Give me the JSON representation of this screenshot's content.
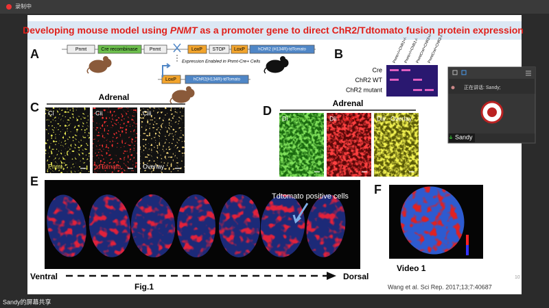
{
  "recording_indicator": "录制中",
  "slide": {
    "title": {
      "before": "Developing mouse model using ",
      "italic": "PNMT",
      "after": " as a promoter gene to direct ChR2/Tdtomato fusion protein expression"
    },
    "panel_a": {
      "label": "A",
      "promoter1": "Pnmt",
      "cre": "Cre recombinase",
      "promoter2": "Pnmt",
      "loxp1": "LoxP",
      "stop": "STOP",
      "loxp2": "LoxP",
      "gene": "hChR2 (H134R)-tdTomato",
      "expression": "Expression Enabled in Pnmt-Cre+ Cells",
      "loxp3": "LoxP",
      "gene2": "hChR2(H134R)-tdTomato"
    },
    "panel_b": {
      "label": "B",
      "lanes": [
        "Pnmt+/+ChR2+/-",
        "Pnmt+/+ChR2-/-",
        "PnmtCre/+ChR2+/-",
        "PnmtCre/+ChR2-/-"
      ],
      "rows": [
        "Cre",
        "ChR2 WT",
        "ChR2 mutant"
      ]
    },
    "panel_c": {
      "label": "C",
      "heading": "Adrenal",
      "images": [
        {
          "tag": "Ci",
          "caption": "Pnmt"
        },
        {
          "tag": "Cii",
          "caption": "tdTomato"
        },
        {
          "tag": "Ciii",
          "caption": "Overlay"
        }
      ]
    },
    "panel_d": {
      "label": "D",
      "heading": "Adrenal",
      "images": [
        {
          "tag": "Di",
          "caption": "Pnmt"
        },
        {
          "tag": "Dii",
          "caption": "ChR2"
        },
        {
          "tag": "Diii",
          "caption": "Overlay"
        }
      ]
    },
    "panel_e": {
      "label": "E",
      "annotation": "Tdtomato positive cells",
      "ventral": "Ventral",
      "dorsal": "Dorsal",
      "figure": "Fig.1"
    },
    "panel_f": {
      "label": "F",
      "caption": "Video 1"
    },
    "citation": "Wang et al. Sci Rep. 2017;13;7:40687",
    "page_number": "10"
  },
  "video_panel": {
    "speaking": "正在讲话: Sandy;",
    "name": "Sandy"
  },
  "share_label": "Sandy的屏幕共享"
}
